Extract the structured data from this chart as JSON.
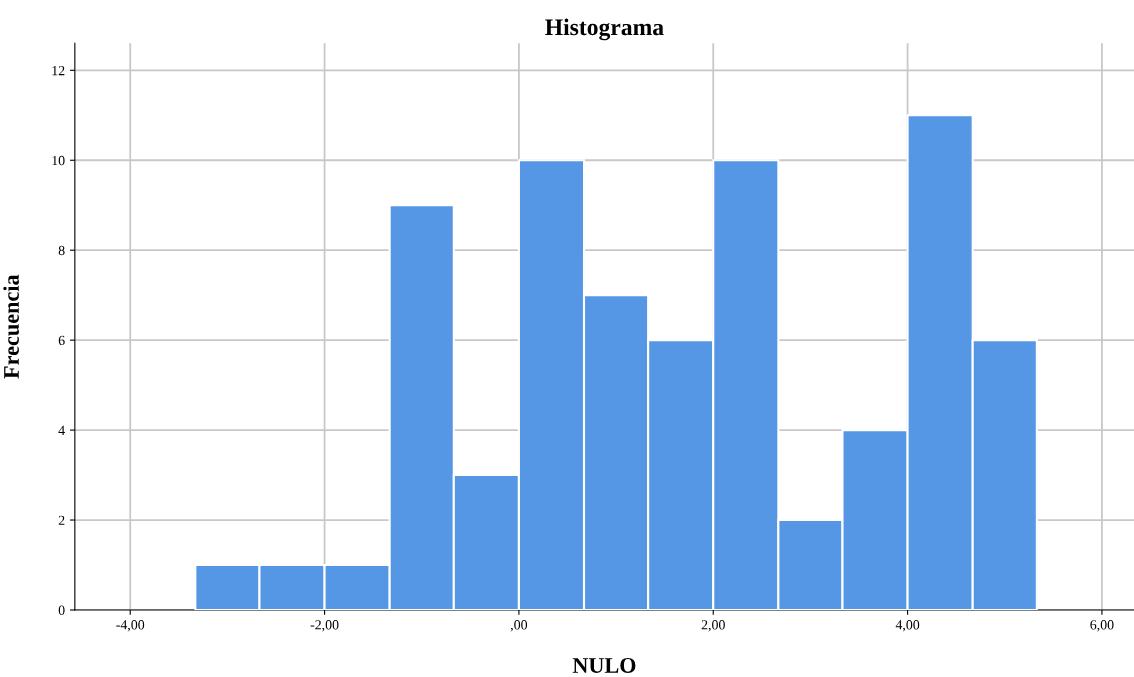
{
  "chart_data": {
    "type": "histogram",
    "title": "Histograma",
    "xlabel": "NULO",
    "ylabel": "Frecuencia",
    "bins": [
      -3.33,
      -2.67,
      -2,
      -1.33,
      -0.67,
      0,
      0.67,
      1.33,
      2,
      2.67,
      3.33,
      4,
      4.67,
      5.33
    ],
    "values": [
      1,
      1,
      1,
      9,
      3,
      10,
      7,
      6,
      10,
      2,
      4,
      11,
      6
    ],
    "color": "#5597e5",
    "xlim": [
      -4.57,
      6.33
    ],
    "xticks": [
      {
        "value": -4,
        "label": "-4,00"
      },
      {
        "value": -2,
        "label": "-2,00"
      },
      {
        "value": 0,
        "label": ",00"
      },
      {
        "value": 2,
        "label": "2,00"
      },
      {
        "value": 4,
        "label": "4,00"
      },
      {
        "value": 6,
        "label": "6,00"
      }
    ],
    "ylim": [
      0,
      12.6
    ],
    "yticks": [
      0,
      2,
      4,
      6,
      8,
      10,
      12
    ],
    "grid": true
  }
}
